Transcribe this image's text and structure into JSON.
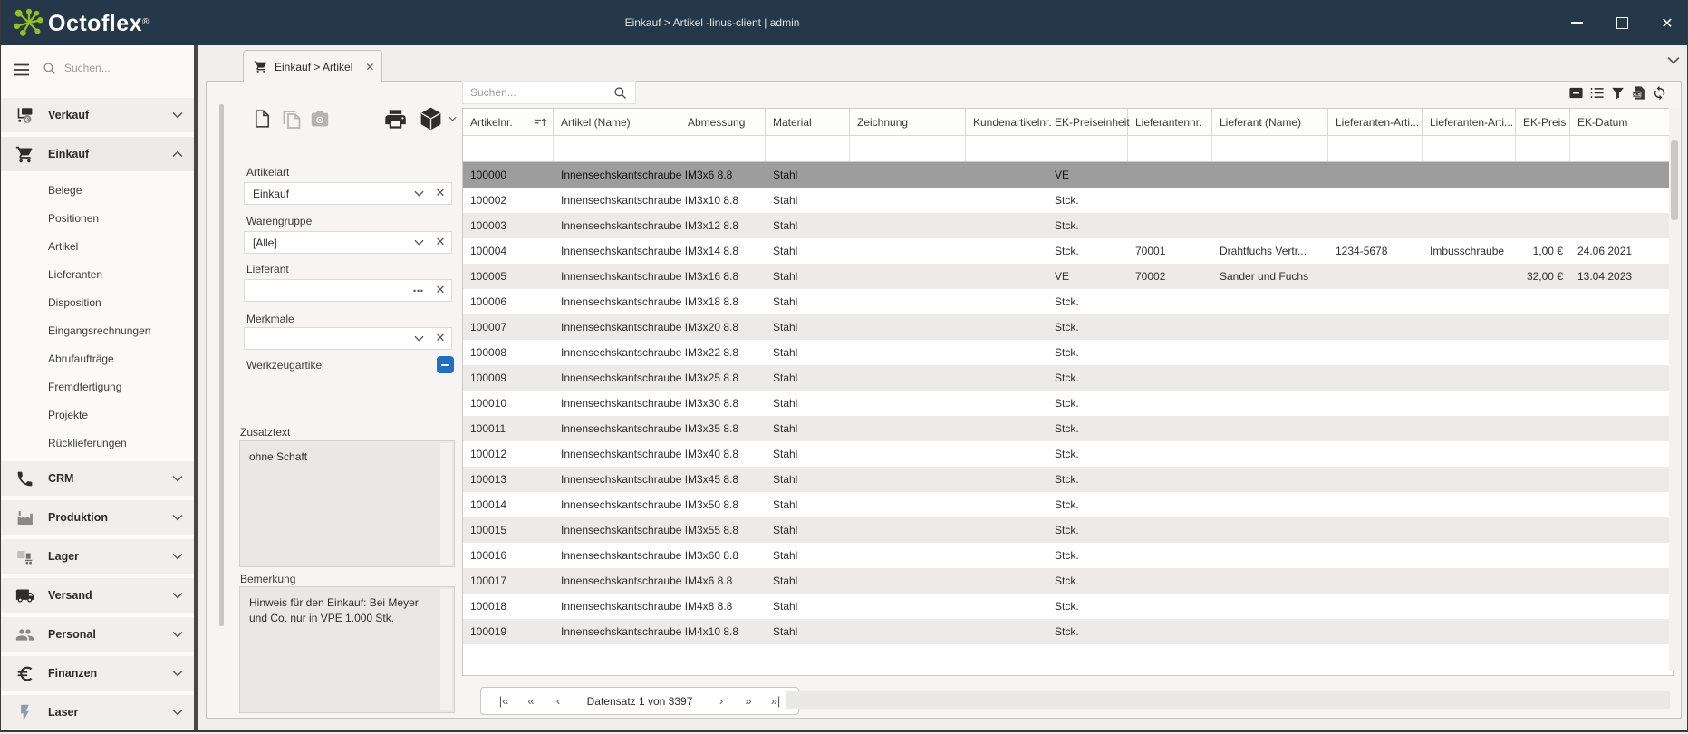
{
  "window": {
    "brand": "Octoflex",
    "brand_reg": "®",
    "title_center": "Einkauf > Artikel -linus-client | admin"
  },
  "sidebar": {
    "search_placeholder": "Suchen...",
    "sections": [
      {
        "label": "Verkauf",
        "icon": "cart-euro-icon",
        "expanded": false
      },
      {
        "label": "Einkauf",
        "icon": "cart-icon",
        "expanded": true,
        "children": [
          "Belege",
          "Positionen",
          "Artikel",
          "Lieferanten",
          "Disposition",
          "Eingangsrechnungen",
          "Abrufaufträge",
          "Fremdfertigung",
          "Projekte",
          "Rücklieferungen"
        ]
      },
      {
        "label": "CRM",
        "icon": "phone-icon",
        "expanded": false
      },
      {
        "label": "Produktion",
        "icon": "factory-icon",
        "expanded": false
      },
      {
        "label": "Lager",
        "icon": "warehouse-icon",
        "expanded": false
      },
      {
        "label": "Versand",
        "icon": "truck-icon",
        "expanded": false
      },
      {
        "label": "Personal",
        "icon": "people-icon",
        "expanded": false
      },
      {
        "label": "Finanzen",
        "icon": "euro-icon",
        "expanded": false
      },
      {
        "label": "Laser",
        "icon": "bolt-icon",
        "expanded": false
      }
    ]
  },
  "tab": {
    "label": "Einkauf > Artikel"
  },
  "filters": {
    "artikelart": {
      "label": "Artikelart",
      "value": "Einkauf"
    },
    "warengruppe": {
      "label": "Warengruppe",
      "value": "[Alle]"
    },
    "lieferant": {
      "label": "Lieferant",
      "value": ""
    },
    "merkmale": {
      "label": "Merkmale",
      "value": ""
    },
    "werkzeugartikel": {
      "label": "Werkzeugartikel",
      "state": "indeterminate"
    },
    "zusatztext": {
      "label": "Zusatztext",
      "value": "ohne Schaft"
    },
    "bemerkung": {
      "label": "Bemerkung",
      "value": "Hinweis für den Einkauf: Bei Meyer und Co. nur in VPE 1.000 Stk."
    }
  },
  "grid": {
    "search_placeholder": "Suchen...",
    "columns": [
      "Artikelnr.",
      "Artikel (Name)",
      "Abmessung",
      "Material",
      "Zeichnung",
      "Kundenartikelnr.",
      "EK-Preiseinheit",
      "Lieferantennr.",
      "Lieferant (Name)",
      "Lieferanten-Arti...",
      "Lieferanten-Arti...",
      "EK-Preis",
      "EK-Datum"
    ],
    "selected_row": 0,
    "rows": [
      [
        "100000",
        "Innensechskantschraube I...",
        "M3x6 8.8",
        "Stahl",
        "",
        "",
        "VE",
        "",
        "",
        "",
        "",
        "",
        ""
      ],
      [
        "100002",
        "Innensechskantschraube I...",
        "M3x10 8.8",
        "Stahl",
        "",
        "",
        "Stck.",
        "",
        "",
        "",
        "",
        "",
        ""
      ],
      [
        "100003",
        "Innensechskantschraube I...",
        "M3x12 8.8",
        "Stahl",
        "",
        "",
        "Stck.",
        "",
        "",
        "",
        "",
        "",
        ""
      ],
      [
        "100004",
        "Innensechskantschraube I...",
        "M3x14 8.8",
        "Stahl",
        "",
        "",
        "Stck.",
        "70001",
        "Drahtfuchs Vertr...",
        "1234-5678",
        "Imbusschraube",
        "1,00 €",
        "24.06.2021"
      ],
      [
        "100005",
        "Innensechskantschraube I...",
        "M3x16 8.8",
        "Stahl",
        "",
        "",
        "VE",
        "70002",
        "Sander und Fuchs",
        "",
        "",
        "32,00 €",
        "13.04.2023"
      ],
      [
        "100006",
        "Innensechskantschraube I...",
        "M3x18 8.8",
        "Stahl",
        "",
        "",
        "Stck.",
        "",
        "",
        "",
        "",
        "",
        ""
      ],
      [
        "100007",
        "Innensechskantschraube I...",
        "M3x20 8.8",
        "Stahl",
        "",
        "",
        "Stck.",
        "",
        "",
        "",
        "",
        "",
        ""
      ],
      [
        "100008",
        "Innensechskantschraube I...",
        "M3x22 8.8",
        "Stahl",
        "",
        "",
        "Stck.",
        "",
        "",
        "",
        "",
        "",
        ""
      ],
      [
        "100009",
        "Innensechskantschraube I...",
        "M3x25 8.8",
        "Stahl",
        "",
        "",
        "Stck.",
        "",
        "",
        "",
        "",
        "",
        ""
      ],
      [
        "100010",
        "Innensechskantschraube I...",
        "M3x30 8.8",
        "Stahl",
        "",
        "",
        "Stck.",
        "",
        "",
        "",
        "",
        "",
        ""
      ],
      [
        "100011",
        "Innensechskantschraube I...",
        "M3x35 8.8",
        "Stahl",
        "",
        "",
        "Stck.",
        "",
        "",
        "",
        "",
        "",
        ""
      ],
      [
        "100012",
        "Innensechskantschraube I...",
        "M3x40 8.8",
        "Stahl",
        "",
        "",
        "Stck.",
        "",
        "",
        "",
        "",
        "",
        ""
      ],
      [
        "100013",
        "Innensechskantschraube I...",
        "M3x45 8.8",
        "Stahl",
        "",
        "",
        "Stck.",
        "",
        "",
        "",
        "",
        "",
        ""
      ],
      [
        "100014",
        "Innensechskantschraube I...",
        "M3x50 8.8",
        "Stahl",
        "",
        "",
        "Stck.",
        "",
        "",
        "",
        "",
        "",
        ""
      ],
      [
        "100015",
        "Innensechskantschraube I...",
        "M3x55 8.8",
        "Stahl",
        "",
        "",
        "Stck.",
        "",
        "",
        "",
        "",
        "",
        ""
      ],
      [
        "100016",
        "Innensechskantschraube I...",
        "M3x60 8.8",
        "Stahl",
        "",
        "",
        "Stck.",
        "",
        "",
        "",
        "",
        "",
        ""
      ],
      [
        "100017",
        "Innensechskantschraube I...",
        "M4x6 8.8",
        "Stahl",
        "",
        "",
        "Stck.",
        "",
        "",
        "",
        "",
        "",
        ""
      ],
      [
        "100018",
        "Innensechskantschraube I...",
        "M4x8 8.8",
        "Stahl",
        "",
        "",
        "Stck.",
        "",
        "",
        "",
        "",
        "",
        ""
      ],
      [
        "100019",
        "Innensechskantschraube I...",
        "M4x10 8.8",
        "Stahl",
        "",
        "",
        "Stck.",
        "",
        "",
        "",
        "",
        "",
        ""
      ]
    ],
    "pager": {
      "text": "Datensatz 1 von 3397",
      "buttons_left": [
        {
          "name": "first-page-button",
          "glyph": "|«"
        },
        {
          "name": "prev-group-button",
          "glyph": "«"
        },
        {
          "name": "prev-record-button",
          "glyph": "‹"
        }
      ],
      "buttons_right": [
        {
          "name": "next-record-button",
          "glyph": "›"
        },
        {
          "name": "next-group-button",
          "glyph": "»"
        },
        {
          "name": "last-page-button",
          "glyph": "»|"
        }
      ]
    }
  },
  "colors": {
    "titlebar": "#24384a",
    "brand_green": "#95c11f",
    "accent_blue": "#1f6fc5",
    "selected_row": "#9d9d9d",
    "row_stripe": "#edebe9"
  }
}
